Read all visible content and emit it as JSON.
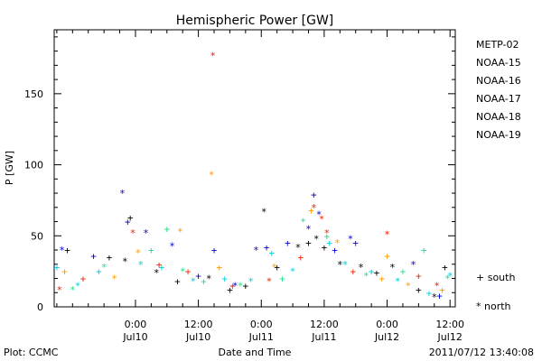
{
  "chart_data": {
    "type": "scatter",
    "title": "Hemispheric Power [GW]",
    "xlabel": "Date and Time",
    "ylabel": "P [GW]",
    "ylim": [
      0,
      195
    ],
    "xlim": [
      "2011-07-09 08:30",
      "2011-07-12 13:00"
    ],
    "yticks": [
      0,
      50,
      100,
      150
    ],
    "xticks": [
      {
        "top": "0:00",
        "bottom": "Jul10",
        "at": "2011-07-10 00:00"
      },
      {
        "top": "12:00",
        "bottom": "Jul10",
        "at": "2011-07-10 12:00"
      },
      {
        "top": "0:00",
        "bottom": "Jul11",
        "at": "2011-07-11 00:00"
      },
      {
        "top": "12:00",
        "bottom": "Jul11",
        "at": "2011-07-11 12:00"
      },
      {
        "top": "0:00",
        "bottom": "Jul12",
        "at": "2011-07-12 00:00"
      },
      {
        "top": "12:00",
        "bottom": "Jul12",
        "at": "2011-07-12 12:00"
      }
    ],
    "grid": false,
    "legend_position": "right",
    "symbol_legend": [
      {
        "symbol": "+",
        "label": "+ south"
      },
      {
        "symbol": "*",
        "label": "* north"
      }
    ],
    "series": [
      {
        "name": "METP-02",
        "color": "#000000",
        "points": [
          [
            "2011-07-09 11:00",
            40,
            "+"
          ],
          [
            "2011-07-09 19:00",
            35,
            "+"
          ],
          [
            "2011-07-09 23:00",
            63,
            "+"
          ],
          [
            "2011-07-09 22:00",
            32,
            "*"
          ],
          [
            "2011-07-10 04:00",
            24,
            "*"
          ],
          [
            "2011-07-10 08:00",
            18,
            "+"
          ],
          [
            "2011-07-10 14:00",
            20,
            "*"
          ],
          [
            "2011-07-10 18:00",
            12,
            "+"
          ],
          [
            "2011-07-10 21:00",
            15,
            "+"
          ],
          [
            "2011-07-11 00:30",
            67,
            "*"
          ],
          [
            "2011-07-11 03:00",
            28,
            "+"
          ],
          [
            "2011-07-11 07:00",
            42,
            "*"
          ],
          [
            "2011-07-11 09:00",
            45,
            "+"
          ],
          [
            "2011-07-11 10:30",
            48,
            "*"
          ],
          [
            "2011-07-11 12:00",
            42,
            "+"
          ],
          [
            "2011-07-11 15:00",
            30,
            "*"
          ],
          [
            "2011-07-11 19:00",
            28,
            "*"
          ],
          [
            "2011-07-11 22:00",
            24,
            "+"
          ],
          [
            "2011-07-12 01:00",
            28,
            "*"
          ],
          [
            "2011-07-12 06:00",
            12,
            "+"
          ],
          [
            "2011-07-12 09:00",
            7,
            "*"
          ],
          [
            "2011-07-12 11:00",
            28,
            "+"
          ]
        ]
      },
      {
        "name": "NOAA-15",
        "color": "#0000cc",
        "points": [
          [
            "2011-07-09 10:00",
            40,
            "*"
          ],
          [
            "2011-07-09 16:00",
            36,
            "+"
          ],
          [
            "2011-07-09 21:30",
            80,
            "*"
          ],
          [
            "2011-07-09 22:30",
            60,
            "+"
          ],
          [
            "2011-07-10 02:00",
            52,
            "*"
          ],
          [
            "2011-07-10 07:00",
            43,
            "*"
          ],
          [
            "2011-07-10 12:00",
            22,
            "+"
          ],
          [
            "2011-07-10 15:00",
            40,
            "+"
          ],
          [
            "2011-07-10 19:00",
            15,
            "*"
          ],
          [
            "2011-07-10 23:00",
            40,
            "*"
          ],
          [
            "2011-07-11 01:00",
            42,
            "+"
          ],
          [
            "2011-07-11 05:00",
            45,
            "+"
          ],
          [
            "2011-07-11 09:00",
            55,
            "*"
          ],
          [
            "2011-07-11 10:00",
            79,
            "+"
          ],
          [
            "2011-07-11 11:00",
            65,
            "*"
          ],
          [
            "2011-07-11 14:00",
            40,
            "+"
          ],
          [
            "2011-07-11 17:00",
            48,
            "*"
          ],
          [
            "2011-07-11 18:00",
            45,
            "+"
          ],
          [
            "2011-07-12 05:00",
            30,
            "*"
          ],
          [
            "2011-07-12 10:00",
            8,
            "+"
          ]
        ]
      },
      {
        "name": "NOAA-16",
        "color": "#00ccdd",
        "points": [
          [
            "2011-07-09 09:00",
            28,
            "+"
          ],
          [
            "2011-07-09 13:00",
            15,
            "*"
          ],
          [
            "2011-07-09 17:00",
            25,
            "+"
          ],
          [
            "2011-07-10 01:00",
            30,
            "*"
          ],
          [
            "2011-07-10 05:00",
            28,
            "+"
          ],
          [
            "2011-07-10 11:00",
            18,
            "*"
          ],
          [
            "2011-07-10 17:00",
            20,
            "+"
          ],
          [
            "2011-07-10 22:00",
            18,
            "*"
          ],
          [
            "2011-07-11 02:00",
            38,
            "+"
          ],
          [
            "2011-07-11 06:00",
            25,
            "*"
          ],
          [
            "2011-07-11 13:00",
            45,
            "+"
          ],
          [
            "2011-07-11 16:00",
            30,
            "*"
          ],
          [
            "2011-07-11 21:00",
            25,
            "+"
          ],
          [
            "2011-07-12 02:00",
            18,
            "*"
          ],
          [
            "2011-07-12 08:00",
            10,
            "+"
          ],
          [
            "2011-07-12 12:00",
            22,
            "*"
          ]
        ]
      },
      {
        "name": "NOAA-17",
        "color": "#22dd88",
        "points": [
          [
            "2011-07-09 12:00",
            12,
            "*"
          ],
          [
            "2011-07-09 18:00",
            28,
            "*"
          ],
          [
            "2011-07-10 03:00",
            40,
            "+"
          ],
          [
            "2011-07-10 06:00",
            55,
            "+"
          ],
          [
            "2011-07-10 09:00",
            25,
            "*"
          ],
          [
            "2011-07-10 13:00",
            18,
            "+"
          ],
          [
            "2011-07-10 20:00",
            15,
            "*"
          ],
          [
            "2011-07-11 04:00",
            20,
            "+"
          ],
          [
            "2011-07-11 08:00",
            60,
            "*"
          ],
          [
            "2011-07-11 12:30",
            50,
            "+"
          ],
          [
            "2011-07-11 20:00",
            22,
            "*"
          ],
          [
            "2011-07-12 03:00",
            25,
            "+"
          ],
          [
            "2011-07-12 07:00",
            40,
            "+"
          ],
          [
            "2011-07-12 11:30",
            20,
            "*"
          ]
        ]
      },
      {
        "name": "NOAA-18",
        "color": "#ff9900",
        "points": [
          [
            "2011-07-09 10:30",
            25,
            "+"
          ],
          [
            "2011-07-09 20:00",
            20,
            "*"
          ],
          [
            "2011-07-10 00:30",
            38,
            "*"
          ],
          [
            "2011-07-10 08:30",
            53,
            "*"
          ],
          [
            "2011-07-10 14:30",
            93,
            "*"
          ],
          [
            "2011-07-10 16:00",
            28,
            "+"
          ],
          [
            "2011-07-11 02:30",
            28,
            "*"
          ],
          [
            "2011-07-11 09:30",
            68,
            "+"
          ],
          [
            "2011-07-11 14:30",
            45,
            "*"
          ],
          [
            "2011-07-11 23:00",
            20,
            "+"
          ],
          [
            "2011-07-12 00:00",
            36,
            "+"
          ],
          [
            "2011-07-12 04:00",
            15,
            "*"
          ],
          [
            "2011-07-12 10:30",
            12,
            "+"
          ]
        ]
      },
      {
        "name": "NOAA-19",
        "color": "#ee2200",
        "points": [
          [
            "2011-07-09 09:30",
            12,
            "*"
          ],
          [
            "2011-07-09 14:00",
            20,
            "+"
          ],
          [
            "2011-07-09 23:30",
            52,
            "*"
          ],
          [
            "2011-07-10 04:30",
            30,
            "+"
          ],
          [
            "2011-07-10 10:00",
            25,
            "+"
          ],
          [
            "2011-07-10 14:45",
            177,
            "*"
          ],
          [
            "2011-07-10 18:30",
            15,
            "+"
          ],
          [
            "2011-07-11 01:30",
            18,
            "*"
          ],
          [
            "2011-07-11 07:30",
            35,
            "+"
          ],
          [
            "2011-07-11 10:00",
            70,
            "*"
          ],
          [
            "2011-07-11 11:30",
            62,
            "*"
          ],
          [
            "2011-07-11 12:30",
            52,
            "*"
          ],
          [
            "2011-07-11 17:30",
            25,
            "+"
          ],
          [
            "2011-07-12 00:00",
            51,
            "*"
          ],
          [
            "2011-07-12 06:00",
            22,
            "+"
          ],
          [
            "2011-07-12 09:30",
            15,
            "*"
          ]
        ]
      }
    ]
  },
  "footer": {
    "left": "Plot: CCMC",
    "right": "2011/07/12 13:40:08"
  }
}
